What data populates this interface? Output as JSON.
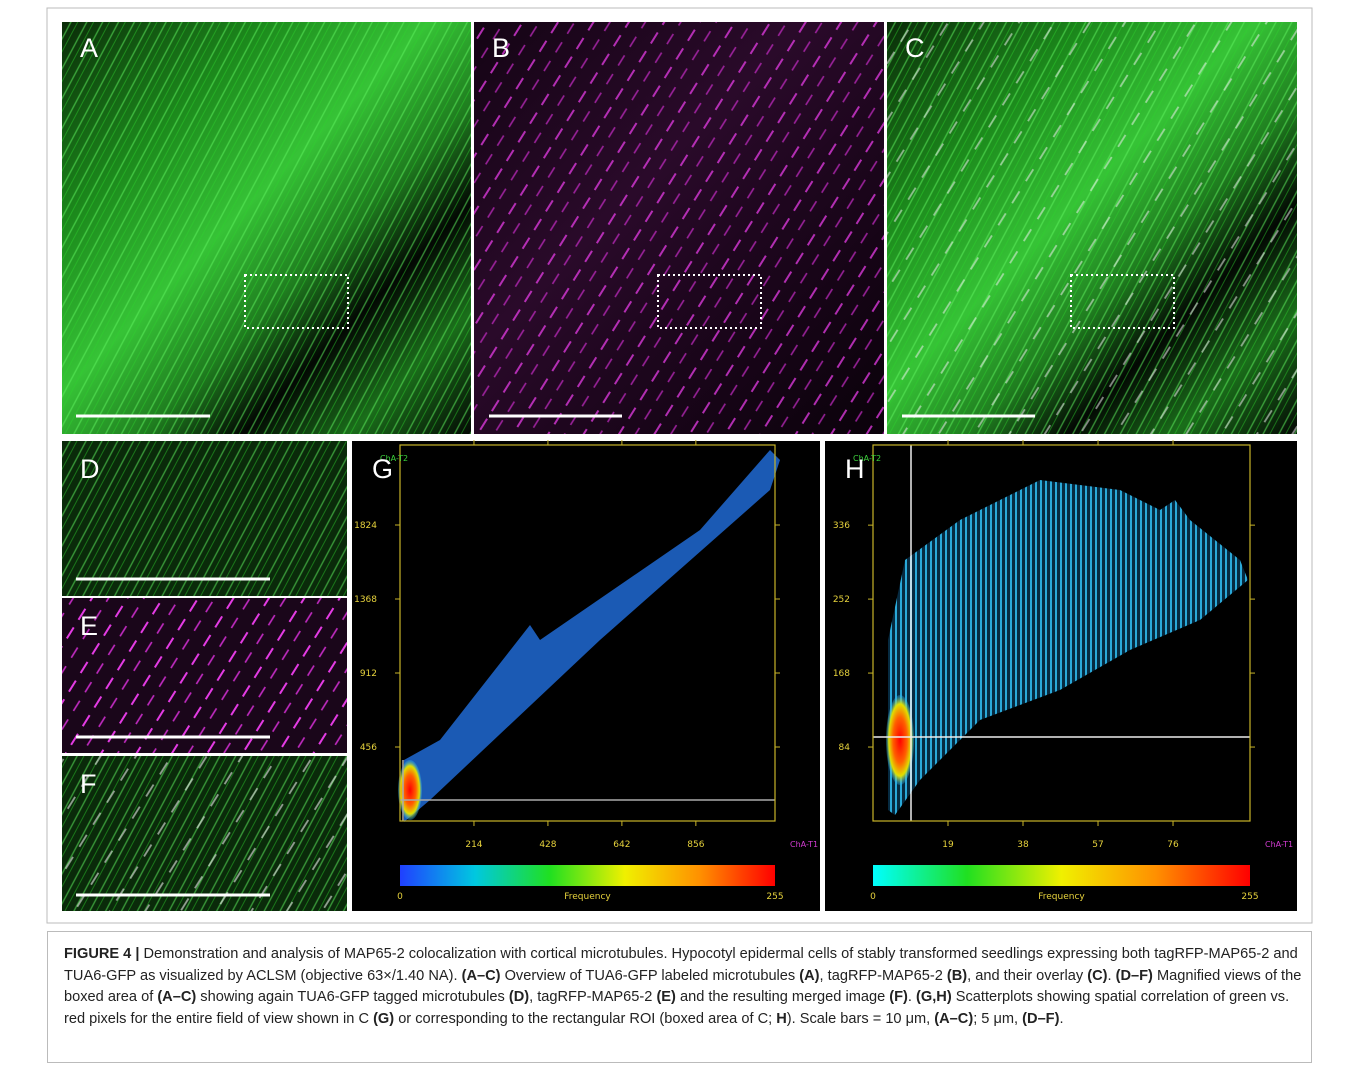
{
  "panel_labels": [
    "A",
    "B",
    "C",
    "D",
    "E",
    "F",
    "G",
    "H"
  ],
  "scatterplots": [
    {
      "type": "scatter",
      "y_axis_label": "ChA-T2",
      "x_axis_label": "ChA-T1",
      "xlim": [
        0,
        1085
      ],
      "ylim": [
        0,
        2317
      ],
      "xticks": [
        214,
        428,
        642,
        856
      ],
      "yticks": [
        456,
        912,
        1368,
        1824
      ],
      "colorbar": {
        "min": 0,
        "max": 255,
        "label": "Frequency"
      }
    },
    {
      "type": "scatter",
      "y_axis_label": "ChA-T2",
      "x_axis_label": "ChA-T1",
      "xlim": [
        0,
        95.5
      ],
      "ylim": [
        0,
        427
      ],
      "xticks": [
        19,
        38,
        57,
        76
      ],
      "yticks": [
        84,
        168,
        252,
        336
      ],
      "colorbar": {
        "min": 0,
        "max": 255,
        "label": "Frequency"
      }
    }
  ],
  "caption": [
    {
      "text": "FIGURE 4 |",
      "bold": true
    },
    {
      "text": " Demonstration and analysis of MAP65-2 colocalization with cortical microtubules. Hypocotyl epidermal cells of stably transformed seedlings expressing both tagRFP-MAP65-2 and TUA6-GFP as visualized by ACLSM (objective 63×/1.40 NA). ",
      "bold": false
    },
    {
      "text": "(A–C)",
      "bold": true
    },
    {
      "text": " Overview of TUA6-GFP labeled microtubules ",
      "bold": false
    },
    {
      "text": "(A)",
      "bold": true
    },
    {
      "text": ", tagRFP-MAP65-2 ",
      "bold": false
    },
    {
      "text": "(B)",
      "bold": true
    },
    {
      "text": ", and their overlay ",
      "bold": false
    },
    {
      "text": "(C)",
      "bold": true
    },
    {
      "text": ". ",
      "bold": false
    },
    {
      "text": "(D–F)",
      "bold": true
    },
    {
      "text": " Magnified views of the boxed area of ",
      "bold": false
    },
    {
      "text": "(A–C)",
      "bold": true
    },
    {
      "text": " showing again TUA6-GFP tagged microtubules ",
      "bold": false
    },
    {
      "text": "(D)",
      "bold": true
    },
    {
      "text": ", tagRFP-MAP65-2 ",
      "bold": false
    },
    {
      "text": "(E)",
      "bold": true
    },
    {
      "text": " and the resulting merged image ",
      "bold": false
    },
    {
      "text": "(F)",
      "bold": true
    },
    {
      "text": ". ",
      "bold": false
    },
    {
      "text": "(G,H)",
      "bold": true
    },
    {
      "text": " Scatterplots showing spatial correlation of green vs. red pixels for the entire field of view shown in C ",
      "bold": false
    },
    {
      "text": "(G)",
      "bold": true
    },
    {
      "text": " or corresponding to the rectangular ROI (boxed area of C; ",
      "bold": false
    },
    {
      "text": "H",
      "bold": true
    },
    {
      "text": "). Scale bars = 10 μm, ",
      "bold": false
    },
    {
      "text": "(A–C)",
      "bold": true
    },
    {
      "text": "; 5 μm, ",
      "bold": false
    },
    {
      "text": "(D–F)",
      "bold": true
    },
    {
      "text": ".",
      "bold": false
    }
  ]
}
